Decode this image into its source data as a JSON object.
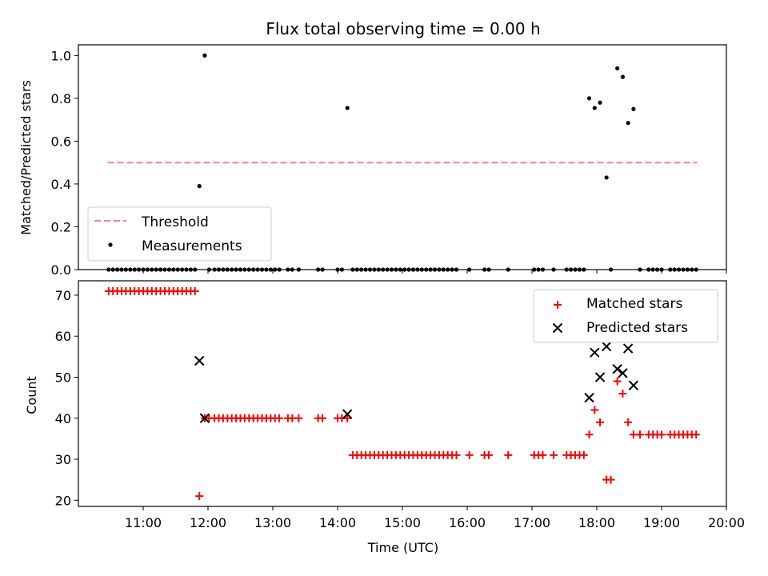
{
  "chart_data": [
    {
      "type": "scatter",
      "title": "Flux total observing time = 0.00 h",
      "xlabel": "",
      "ylabel": "Matched/Predicted stars",
      "xlim": [
        "10:00",
        "20:00"
      ],
      "ylim": [
        0,
        1.05
      ],
      "yticks": [
        "0.0",
        "0.2",
        "0.4",
        "0.6",
        "0.8",
        "1.0"
      ],
      "legend": {
        "placement": "lower-left",
        "entries": [
          "Threshold",
          "Measurements"
        ]
      },
      "threshold": {
        "name": "Threshold",
        "x": [
          "10:27",
          "19:33"
        ],
        "y": 0.5,
        "color": "#ff8080",
        "style": "dashed"
      },
      "series": [
        {
          "name": "Measurements",
          "color": "#000000",
          "marker": "dot",
          "points": [
            [
              "10:28",
              0
            ],
            [
              "10:32",
              0
            ],
            [
              "10:36",
              0
            ],
            [
              "10:40",
              0
            ],
            [
              "10:44",
              0
            ],
            [
              "10:48",
              0
            ],
            [
              "10:52",
              0
            ],
            [
              "10:56",
              0
            ],
            [
              "11:00",
              0
            ],
            [
              "11:04",
              0
            ],
            [
              "11:08",
              0
            ],
            [
              "11:12",
              0
            ],
            [
              "11:16",
              0
            ],
            [
              "11:20",
              0
            ],
            [
              "11:24",
              0
            ],
            [
              "11:28",
              0
            ],
            [
              "11:32",
              0
            ],
            [
              "11:36",
              0
            ],
            [
              "11:40",
              0
            ],
            [
              "11:44",
              0
            ],
            [
              "11:48",
              0
            ],
            [
              "11:52",
              0.39
            ],
            [
              "11:57",
              1.0
            ],
            [
              "12:01",
              0
            ],
            [
              "12:06",
              0
            ],
            [
              "12:10",
              0
            ],
            [
              "12:14",
              0
            ],
            [
              "12:18",
              0
            ],
            [
              "12:22",
              0
            ],
            [
              "12:26",
              0
            ],
            [
              "12:30",
              0
            ],
            [
              "12:34",
              0
            ],
            [
              "12:38",
              0
            ],
            [
              "12:42",
              0
            ],
            [
              "12:46",
              0
            ],
            [
              "12:50",
              0
            ],
            [
              "12:54",
              0
            ],
            [
              "12:58",
              0
            ],
            [
              "13:02",
              0
            ],
            [
              "13:06",
              0
            ],
            [
              "13:14",
              0
            ],
            [
              "13:18",
              0
            ],
            [
              "13:24",
              0
            ],
            [
              "13:42",
              0
            ],
            [
              "13:46",
              0
            ],
            [
              "14:00",
              0
            ],
            [
              "14:04",
              0
            ],
            [
              "14:09",
              0.755
            ],
            [
              "14:14",
              0
            ],
            [
              "14:18",
              0
            ],
            [
              "14:22",
              0
            ],
            [
              "14:26",
              0
            ],
            [
              "14:30",
              0
            ],
            [
              "14:34",
              0
            ],
            [
              "14:38",
              0
            ],
            [
              "14:42",
              0
            ],
            [
              "14:46",
              0
            ],
            [
              "14:50",
              0
            ],
            [
              "14:54",
              0
            ],
            [
              "14:58",
              0
            ],
            [
              "15:02",
              0
            ],
            [
              "15:06",
              0
            ],
            [
              "15:10",
              0
            ],
            [
              "15:14",
              0
            ],
            [
              "15:18",
              0
            ],
            [
              "15:22",
              0
            ],
            [
              "15:26",
              0
            ],
            [
              "15:30",
              0
            ],
            [
              "15:34",
              0
            ],
            [
              "15:38",
              0
            ],
            [
              "15:42",
              0
            ],
            [
              "15:46",
              0
            ],
            [
              "15:50",
              0
            ],
            [
              "16:02",
              0
            ],
            [
              "16:16",
              0
            ],
            [
              "16:20",
              0
            ],
            [
              "16:38",
              0
            ],
            [
              "17:02",
              0
            ],
            [
              "17:06",
              0
            ],
            [
              "17:10",
              0
            ],
            [
              "17:20",
              0
            ],
            [
              "17:32",
              0
            ],
            [
              "17:36",
              0
            ],
            [
              "17:40",
              0
            ],
            [
              "17:44",
              0
            ],
            [
              "17:48",
              0
            ],
            [
              "17:53",
              0.8
            ],
            [
              "17:58",
              0.755
            ],
            [
              "18:03",
              0.78
            ],
            [
              "18:09",
              0.43
            ],
            [
              "18:13",
              0
            ],
            [
              "18:19",
              0.94
            ],
            [
              "18:24",
              0.9
            ],
            [
              "18:29",
              0.685
            ],
            [
              "18:34",
              0.75
            ],
            [
              "18:40",
              0
            ],
            [
              "18:48",
              0
            ],
            [
              "18:52",
              0
            ],
            [
              "18:56",
              0
            ],
            [
              "19:00",
              0
            ],
            [
              "19:08",
              0
            ],
            [
              "19:12",
              0
            ],
            [
              "19:16",
              0
            ],
            [
              "19:20",
              0
            ],
            [
              "19:24",
              0
            ],
            [
              "19:28",
              0
            ],
            [
              "19:32",
              0
            ]
          ]
        }
      ]
    },
    {
      "type": "scatter",
      "title": "",
      "xlabel": "Time (UTC)",
      "ylabel": "Count",
      "xlim": [
        "10:00",
        "20:00"
      ],
      "ylim": [
        18.5,
        73.5
      ],
      "xticks": [
        "11:00",
        "12:00",
        "13:00",
        "14:00",
        "15:00",
        "16:00",
        "17:00",
        "18:00",
        "19:00",
        "20:00"
      ],
      "yticks": [
        "20",
        "30",
        "40",
        "50",
        "60",
        "70"
      ],
      "legend": {
        "placement": "upper-right",
        "entries": [
          "Matched stars",
          "Predicted stars"
        ]
      },
      "series": [
        {
          "name": "Matched stars",
          "color": "#ff0000",
          "marker": "plus",
          "points": [
            [
              "10:28",
              71
            ],
            [
              "10:32",
              71
            ],
            [
              "10:36",
              71
            ],
            [
              "10:40",
              71
            ],
            [
              "10:44",
              71
            ],
            [
              "10:48",
              71
            ],
            [
              "10:52",
              71
            ],
            [
              "10:56",
              71
            ],
            [
              "11:00",
              71
            ],
            [
              "11:04",
              71
            ],
            [
              "11:08",
              71
            ],
            [
              "11:12",
              71
            ],
            [
              "11:16",
              71
            ],
            [
              "11:20",
              71
            ],
            [
              "11:24",
              71
            ],
            [
              "11:28",
              71
            ],
            [
              "11:32",
              71
            ],
            [
              "11:36",
              71
            ],
            [
              "11:40",
              71
            ],
            [
              "11:44",
              71
            ],
            [
              "11:48",
              71
            ],
            [
              "11:52",
              21
            ],
            [
              "11:57",
              40
            ],
            [
              "12:01",
              40
            ],
            [
              "12:06",
              40
            ],
            [
              "12:10",
              40
            ],
            [
              "12:14",
              40
            ],
            [
              "12:18",
              40
            ],
            [
              "12:22",
              40
            ],
            [
              "12:26",
              40
            ],
            [
              "12:30",
              40
            ],
            [
              "12:34",
              40
            ],
            [
              "12:38",
              40
            ],
            [
              "12:42",
              40
            ],
            [
              "12:46",
              40
            ],
            [
              "12:50",
              40
            ],
            [
              "12:54",
              40
            ],
            [
              "12:58",
              40
            ],
            [
              "13:02",
              40
            ],
            [
              "13:06",
              40
            ],
            [
              "13:14",
              40
            ],
            [
              "13:18",
              40
            ],
            [
              "13:24",
              40
            ],
            [
              "13:42",
              40
            ],
            [
              "13:46",
              40
            ],
            [
              "14:00",
              40
            ],
            [
              "14:04",
              40
            ],
            [
              "14:09",
              40
            ],
            [
              "14:14",
              31
            ],
            [
              "14:18",
              31
            ],
            [
              "14:22",
              31
            ],
            [
              "14:26",
              31
            ],
            [
              "14:30",
              31
            ],
            [
              "14:34",
              31
            ],
            [
              "14:38",
              31
            ],
            [
              "14:42",
              31
            ],
            [
              "14:46",
              31
            ],
            [
              "14:50",
              31
            ],
            [
              "14:54",
              31
            ],
            [
              "14:58",
              31
            ],
            [
              "15:02",
              31
            ],
            [
              "15:06",
              31
            ],
            [
              "15:10",
              31
            ],
            [
              "15:14",
              31
            ],
            [
              "15:18",
              31
            ],
            [
              "15:22",
              31
            ],
            [
              "15:26",
              31
            ],
            [
              "15:30",
              31
            ],
            [
              "15:34",
              31
            ],
            [
              "15:38",
              31
            ],
            [
              "15:42",
              31
            ],
            [
              "15:46",
              31
            ],
            [
              "15:50",
              31
            ],
            [
              "16:02",
              31
            ],
            [
              "16:16",
              31
            ],
            [
              "16:20",
              31
            ],
            [
              "16:38",
              31
            ],
            [
              "17:02",
              31
            ],
            [
              "17:06",
              31
            ],
            [
              "17:10",
              31
            ],
            [
              "17:20",
              31
            ],
            [
              "17:32",
              31
            ],
            [
              "17:36",
              31
            ],
            [
              "17:40",
              31
            ],
            [
              "17:44",
              31
            ],
            [
              "17:48",
              31
            ],
            [
              "17:53",
              36
            ],
            [
              "17:58",
              42
            ],
            [
              "18:03",
              39
            ],
            [
              "18:09",
              25
            ],
            [
              "18:13",
              25
            ],
            [
              "18:19",
              49
            ],
            [
              "18:24",
              46
            ],
            [
              "18:29",
              39
            ],
            [
              "18:34",
              36
            ],
            [
              "18:40",
              36
            ],
            [
              "18:48",
              36
            ],
            [
              "18:52",
              36
            ],
            [
              "18:56",
              36
            ],
            [
              "19:00",
              36
            ],
            [
              "19:08",
              36
            ],
            [
              "19:12",
              36
            ],
            [
              "19:16",
              36
            ],
            [
              "19:20",
              36
            ],
            [
              "19:24",
              36
            ],
            [
              "19:28",
              36
            ],
            [
              "19:32",
              36
            ]
          ]
        },
        {
          "name": "Predicted stars",
          "color": "#000000",
          "marker": "x",
          "points": [
            [
              "11:52",
              54
            ],
            [
              "11:57",
              40
            ],
            [
              "14:09",
              41
            ],
            [
              "17:53",
              45
            ],
            [
              "17:58",
              56
            ],
            [
              "18:03",
              50
            ],
            [
              "18:09",
              57.5
            ],
            [
              "18:19",
              52
            ],
            [
              "18:24",
              51
            ],
            [
              "18:29",
              57
            ],
            [
              "18:34",
              48
            ]
          ]
        }
      ]
    }
  ]
}
